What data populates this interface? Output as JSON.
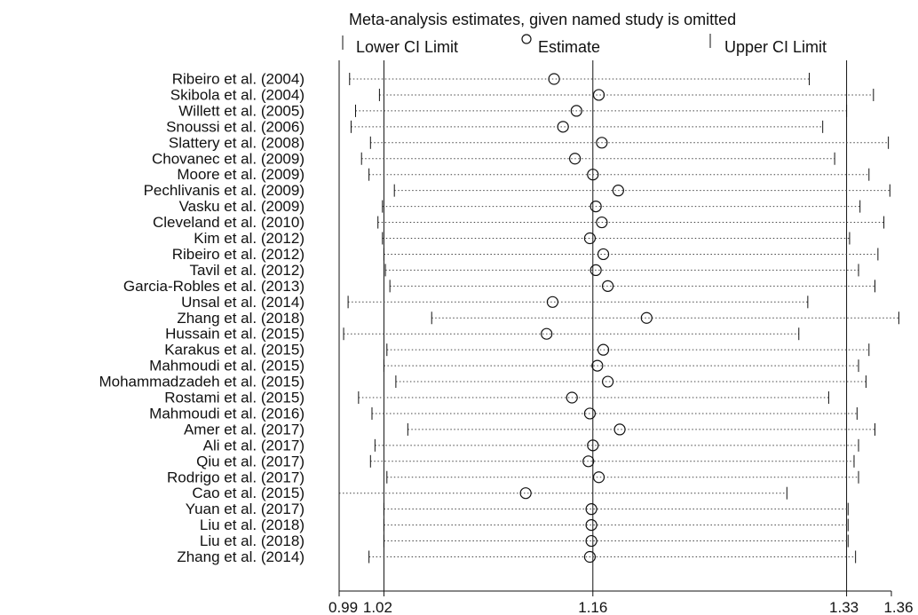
{
  "chart_data": {
    "type": "forest",
    "title": "Meta-analysis estimates, given named study is omitted",
    "legend": {
      "lower": "Lower CI Limit",
      "estimate": "Estimate",
      "upper": "Upper CI Limit"
    },
    "xlim": [
      0.99,
      1.36
    ],
    "reference_lines": [
      1.02,
      1.16,
      1.33
    ],
    "ticks": [
      {
        "value": 0.99,
        "label": "0.99"
      },
      {
        "value": 1.02,
        "label": "1.02"
      },
      {
        "value": 1.16,
        "label": "1.16"
      },
      {
        "value": 1.33,
        "label": "1.33"
      },
      {
        "value": 1.36,
        "label": "1.36"
      }
    ],
    "studies": [
      {
        "name": "Ribeiro et al. (2004)",
        "lower": 0.997,
        "estimate": 1.134,
        "upper": 1.305
      },
      {
        "name": "Skibola et al. (2004)",
        "lower": 1.017,
        "estimate": 1.164,
        "upper": 1.348
      },
      {
        "name": "Willett et al.    (2005)",
        "lower": 1.001,
        "estimate": 1.149,
        "upper": 1.33
      },
      {
        "name": "Snoussi et al. (2006)",
        "lower": 0.998,
        "estimate": 1.14,
        "upper": 1.314
      },
      {
        "name": "Slattery et al. (2008)",
        "lower": 1.011,
        "estimate": 1.166,
        "upper": 1.358
      },
      {
        "name": "Chovanec et al. (2009)",
        "lower": 1.005,
        "estimate": 1.148,
        "upper": 1.322
      },
      {
        "name": "Moore et al. (2009)",
        "lower": 1.01,
        "estimate": 1.16,
        "upper": 1.345
      },
      {
        "name": "Pechlivanis et al. (2009)",
        "lower": 1.027,
        "estimate": 1.177,
        "upper": 1.359
      },
      {
        "name": "Vasku et al. (2009)",
        "lower": 1.019,
        "estimate": 1.162,
        "upper": 1.339
      },
      {
        "name": "Cleveland et al. (2010)",
        "lower": 1.016,
        "estimate": 1.166,
        "upper": 1.355
      },
      {
        "name": "Kim et al. (2012)",
        "lower": 1.019,
        "estimate": 1.158,
        "upper": 1.332
      },
      {
        "name": "Ribeiro et al. (2012)",
        "lower": 1.02,
        "estimate": 1.167,
        "upper": 1.351
      },
      {
        "name": "Tavil et al. (2012)",
        "lower": 1.021,
        "estimate": 1.162,
        "upper": 1.338
      },
      {
        "name": "Garcia-Robles et al.      (2013)",
        "lower": 1.024,
        "estimate": 1.17,
        "upper": 1.349
      },
      {
        "name": "Unsal et al. (2014)",
        "lower": 0.996,
        "estimate": 1.133,
        "upper": 1.304
      },
      {
        "name": "Zhang et al. (2018)",
        "lower": 1.052,
        "estimate": 1.196,
        "upper": 1.365
      },
      {
        "name": "Hussain et al. (2015)",
        "lower": 0.993,
        "estimate": 1.129,
        "upper": 1.298
      },
      {
        "name": "Karakus et al.    (2015)",
        "lower": 1.022,
        "estimate": 1.167,
        "upper": 1.345
      },
      {
        "name": "Mahmoudi et al. (2015)",
        "lower": 1.02,
        "estimate": 1.163,
        "upper": 1.338
      },
      {
        "name": "Mohammadzadeh et al.   (2015)",
        "lower": 1.028,
        "estimate": 1.17,
        "upper": 1.343
      },
      {
        "name": "Rostami et al.   (2015)",
        "lower": 1.003,
        "estimate": 1.146,
        "upper": 1.318
      },
      {
        "name": "Mahmoudi et al. (2016)",
        "lower": 1.012,
        "estimate": 1.158,
        "upper": 1.337
      },
      {
        "name": "Amer et al. (2017)",
        "lower": 1.036,
        "estimate": 1.178,
        "upper": 1.349
      },
      {
        "name": "Ali et al. (2017)",
        "lower": 1.014,
        "estimate": 1.16,
        "upper": 1.338
      },
      {
        "name": "Qiu et al. (2017)",
        "lower": 1.011,
        "estimate": 1.157,
        "upper": 1.335
      },
      {
        "name": "Rodrigo et al.    (2017)",
        "lower": 1.022,
        "estimate": 1.164,
        "upper": 1.338
      },
      {
        "name": "Cao et al. (2015)",
        "lower": 0.99,
        "estimate": 1.115,
        "upper": 1.29
      },
      {
        "name": "Yuan et al. (2017)",
        "lower": 1.02,
        "estimate": 1.159,
        "upper": 1.331
      },
      {
        "name": "Liu et al. (2018)",
        "lower": 1.02,
        "estimate": 1.159,
        "upper": 1.331
      },
      {
        "name": "Liu et al. (2018)",
        "lower": 1.02,
        "estimate": 1.159,
        "upper": 1.331
      },
      {
        "name": "Zhang et al. (2014)",
        "lower": 1.01,
        "estimate": 1.158,
        "upper": 1.336
      }
    ]
  }
}
